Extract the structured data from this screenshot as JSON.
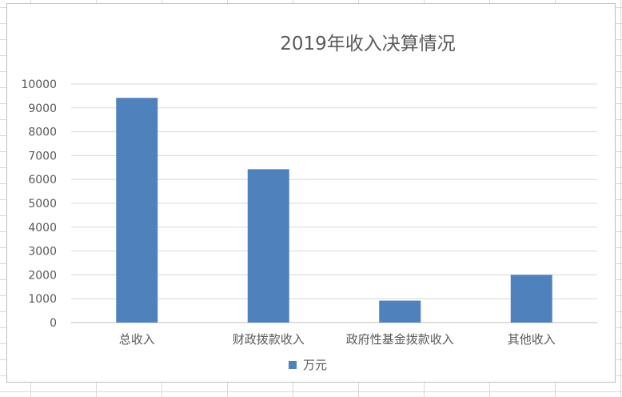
{
  "chart_data": {
    "type": "bar",
    "title": "2019年收入决算情况",
    "categories": [
      "总收入",
      "财政拨款收入",
      "政府性基金拨款收入",
      "其他收入"
    ],
    "series": [
      {
        "name": "万元",
        "values": [
          9420,
          6430,
          920,
          2000
        ],
        "color": "#4f81bd"
      }
    ],
    "ylim": [
      0,
      10000
    ],
    "yticks": [
      0,
      1000,
      2000,
      3000,
      4000,
      5000,
      6000,
      7000,
      8000,
      9000,
      10000
    ],
    "grid": true,
    "legend": "bottom"
  }
}
